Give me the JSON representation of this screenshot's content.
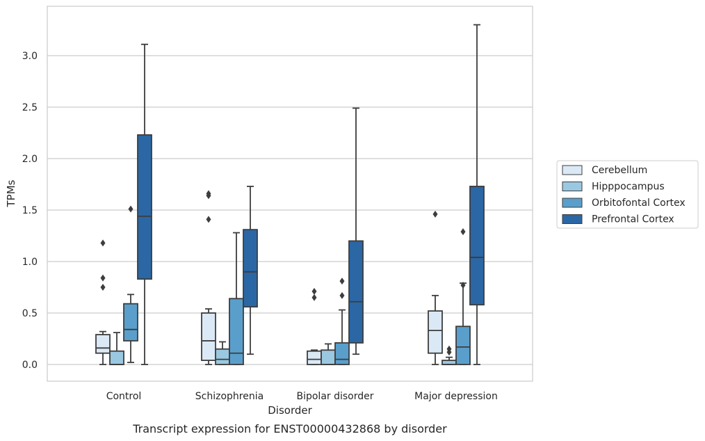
{
  "chart_data": {
    "type": "box",
    "title": "Transcript expression for ENST00000432868 by disorder",
    "xlabel": "Disorder",
    "ylabel": "TPMs",
    "ylim": [
      -0.16,
      3.4
    ],
    "yticks": [
      0.0,
      0.5,
      1.0,
      1.5,
      2.0,
      2.5,
      3.0
    ],
    "ytick_labels": [
      "0.0",
      "0.5",
      "1.0",
      "1.5",
      "2.0",
      "2.5",
      "3.0"
    ],
    "grid": "horizontal",
    "legend_position": "right",
    "categories": [
      "Control",
      "Schizophrenia",
      "Bipolar disorder",
      "Major depression"
    ],
    "series": [
      {
        "name": "Cerebellum",
        "color": "#dbe9f6",
        "boxes": [
          {
            "whislo": 0.0,
            "q1": 0.11,
            "med": 0.16,
            "q3": 0.29,
            "whishi": 0.32,
            "fliers": [
              0.75,
              0.84,
              1.18
            ]
          },
          {
            "whislo": 0.0,
            "q1": 0.04,
            "med": 0.23,
            "q3": 0.5,
            "whishi": 0.54,
            "fliers": [
              1.41,
              1.64,
              1.66
            ]
          },
          {
            "whislo": 0.0,
            "q1": 0.0,
            "med": 0.05,
            "q3": 0.13,
            "whishi": 0.14,
            "fliers": [
              0.65,
              0.71
            ]
          },
          {
            "whislo": 0.0,
            "q1": 0.11,
            "med": 0.33,
            "q3": 0.52,
            "whishi": 0.67,
            "fliers": [
              1.46
            ]
          }
        ]
      },
      {
        "name": "Hipppocampus",
        "color": "#9ac8e0",
        "boxes": [
          {
            "whislo": 0.0,
            "q1": 0.0,
            "med": 0.0,
            "q3": 0.13,
            "whishi": 0.31,
            "fliers": []
          },
          {
            "whislo": 0.0,
            "q1": 0.0,
            "med": 0.05,
            "q3": 0.15,
            "whishi": 0.22,
            "fliers": []
          },
          {
            "whislo": 0.0,
            "q1": 0.0,
            "med": 0.0,
            "q3": 0.14,
            "whishi": 0.2,
            "fliers": []
          },
          {
            "whislo": 0.0,
            "q1": 0.0,
            "med": 0.0,
            "q3": 0.04,
            "whishi": 0.07,
            "fliers": [
              0.12,
              0.15
            ]
          }
        ]
      },
      {
        "name": "Orbitofontal Cortex",
        "color": "#5a9fcb",
        "boxes": [
          {
            "whislo": 0.02,
            "q1": 0.23,
            "med": 0.34,
            "q3": 0.59,
            "whishi": 0.68,
            "fliers": [
              1.51
            ]
          },
          {
            "whislo": 0.0,
            "q1": 0.0,
            "med": 0.11,
            "q3": 0.64,
            "whishi": 1.28,
            "fliers": []
          },
          {
            "whislo": 0.0,
            "q1": 0.0,
            "med": 0.05,
            "q3": 0.21,
            "whishi": 0.53,
            "fliers": [
              0.67,
              0.81
            ]
          },
          {
            "whislo": 0.0,
            "q1": 0.0,
            "med": 0.17,
            "q3": 0.37,
            "whishi": 0.79,
            "fliers": [
              0.77,
              1.29
            ]
          }
        ]
      },
      {
        "name": "Prefrontal Cortex",
        "color": "#2b67a5",
        "boxes": [
          {
            "whislo": 0.0,
            "q1": 0.83,
            "med": 1.44,
            "q3": 2.23,
            "whishi": 3.11,
            "fliers": []
          },
          {
            "whislo": 0.1,
            "q1": 0.56,
            "med": 0.9,
            "q3": 1.31,
            "whishi": 1.73,
            "fliers": []
          },
          {
            "whislo": 0.1,
            "q1": 0.21,
            "med": 0.61,
            "q3": 1.2,
            "whishi": 2.49,
            "fliers": []
          },
          {
            "whislo": 0.0,
            "q1": 0.58,
            "med": 1.04,
            "q3": 1.73,
            "whishi": 3.3,
            "fliers": []
          }
        ]
      }
    ]
  }
}
